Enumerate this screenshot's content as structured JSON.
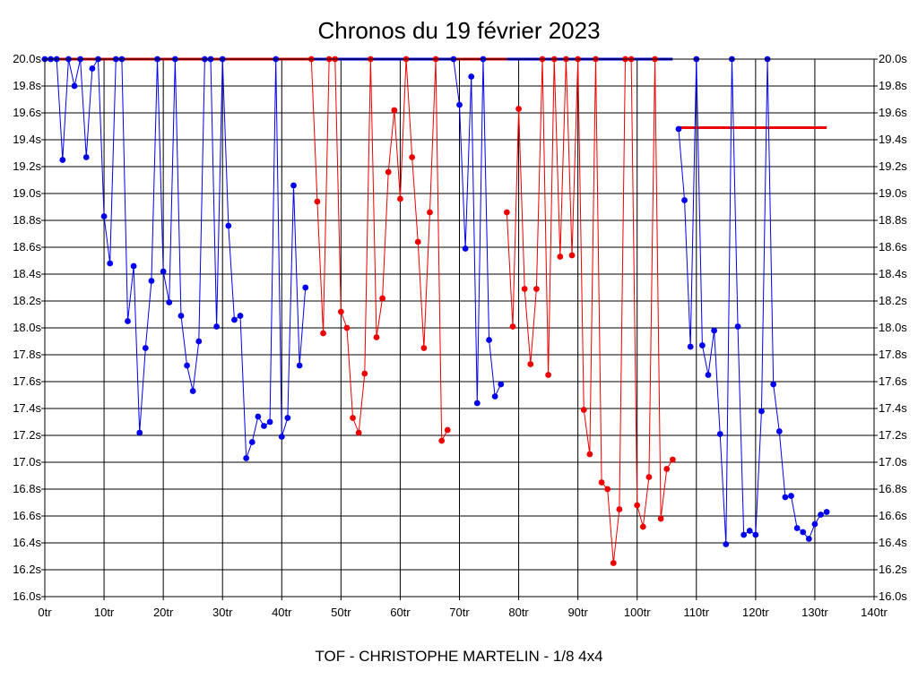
{
  "chart_data": {
    "type": "line",
    "title": "Chronos du 19 février 2023",
    "footer": "TOF - CHRISTOPHE MARTELIN - 1/8 4x4",
    "x_ticks": [
      "0tr",
      "10tr",
      "20tr",
      "30tr",
      "40tr",
      "50tr",
      "60tr",
      "70tr",
      "80tr",
      "90tr",
      "100tr",
      "110tr",
      "120tr",
      "130tr",
      "140tr"
    ],
    "y_ticks": [
      "16.0s",
      "16.2s",
      "16.4s",
      "16.6s",
      "16.8s",
      "17.0s",
      "17.2s",
      "17.4s",
      "17.6s",
      "17.8s",
      "18.0s",
      "18.2s",
      "18.4s",
      "18.6s",
      "18.8s",
      "19.0s",
      "19.2s",
      "19.4s",
      "19.6s",
      "19.8s",
      "20.0s"
    ],
    "xlim": [
      0,
      140
    ],
    "ylim": [
      16.0,
      20.0
    ],
    "grid": true,
    "colors": {
      "blue": "#0000ee",
      "red": "#ee0000",
      "grid": "#000000"
    },
    "series": [
      {
        "color": "#0000ee",
        "x": [
          0,
          1,
          2,
          3,
          4,
          5,
          6,
          7,
          8,
          9,
          10,
          11,
          12,
          13,
          14,
          15,
          16,
          17,
          18,
          19,
          20,
          21,
          22,
          23,
          24,
          25,
          26,
          27,
          28,
          29,
          30,
          31,
          32,
          33,
          34,
          35,
          36,
          37,
          38,
          39,
          40,
          41,
          42,
          43,
          44
        ],
        "y": [
          20.0,
          20.0,
          20.0,
          19.25,
          20.0,
          19.8,
          20.0,
          19.27,
          19.93,
          20.0,
          18.83,
          18.48,
          20.0,
          20.0,
          18.05,
          18.46,
          17.22,
          17.85,
          18.35,
          20.0,
          18.42,
          18.19,
          20.0,
          18.09,
          17.72,
          17.53,
          17.9,
          20.0,
          20.0,
          18.01,
          20.0,
          18.76,
          18.06,
          18.09,
          17.03,
          17.15,
          17.34,
          17.27,
          17.3,
          20.0,
          17.19,
          17.33,
          19.06,
          17.72,
          18.3
        ]
      },
      {
        "color": "#ee0000",
        "x": [
          45,
          46,
          47,
          48,
          49,
          50,
          51,
          52,
          53,
          54,
          55,
          56,
          57,
          58,
          59,
          60,
          61,
          62,
          63,
          64,
          65,
          66,
          67,
          68
        ],
        "y": [
          20.0,
          18.94,
          17.96,
          20.0,
          20.0,
          18.12,
          18.0,
          17.33,
          17.22,
          17.66,
          20.0,
          17.93,
          18.22,
          19.16,
          19.62,
          18.96,
          20.0,
          19.27,
          18.64,
          17.85,
          18.86,
          20.0,
          17.16,
          17.24
        ]
      },
      {
        "color": "#0000ee",
        "x": [
          69,
          70,
          71,
          72,
          73,
          74,
          75,
          76,
          77
        ],
        "y": [
          20.0,
          19.66,
          18.59,
          19.87,
          17.44,
          20.0,
          17.91,
          17.49,
          17.58
        ]
      },
      {
        "color": "#ee0000",
        "x": [
          78,
          79,
          80,
          81,
          82,
          83,
          84,
          85,
          86,
          87,
          88,
          89,
          90,
          91,
          92,
          93,
          94,
          95,
          96,
          97,
          98,
          99,
          100,
          101,
          102,
          103,
          104,
          105,
          106
        ],
        "y": [
          18.86,
          18.01,
          19.63,
          18.29,
          17.73,
          18.29,
          20.0,
          17.65,
          20.0,
          18.53,
          20.0,
          18.54,
          20.0,
          17.39,
          17.06,
          20.0,
          16.85,
          16.8,
          16.25,
          16.65,
          20.0,
          20.0,
          16.68,
          16.52,
          16.89,
          20.0,
          16.58,
          16.95,
          17.02
        ]
      },
      {
        "color": "#0000ee",
        "x": [
          107,
          108,
          109,
          110,
          111,
          112,
          113,
          114,
          115,
          116,
          117,
          118,
          119,
          120,
          121,
          122,
          123,
          124,
          125,
          126,
          127,
          128,
          129,
          130,
          131,
          132
        ],
        "y": [
          19.48,
          18.95,
          17.86,
          20.0,
          17.87,
          17.65,
          17.98,
          17.21,
          16.39,
          20.0,
          18.01,
          16.46,
          16.49,
          16.46,
          17.38,
          20.0,
          17.58,
          17.23,
          16.74,
          16.75,
          16.51,
          16.48,
          16.43,
          16.54,
          16.61,
          16.63
        ]
      }
    ],
    "reference_lines": [
      {
        "color": "#ee0000",
        "y": 20.0,
        "x": [
          0,
          13
        ]
      },
      {
        "color": "#ee0000",
        "y": 20.0,
        "x": [
          13,
          45
        ]
      },
      {
        "color": "#0000ee",
        "y": 20.0,
        "x": [
          45,
          69
        ]
      },
      {
        "color": "#ee0000",
        "y": 20.0,
        "x": [
          69,
          78
        ]
      },
      {
        "color": "#0000ee",
        "y": 20.0,
        "x": [
          78,
          106
        ]
      },
      {
        "color": "#ee0000",
        "y": 19.49,
        "x": [
          107,
          132
        ]
      }
    ]
  }
}
